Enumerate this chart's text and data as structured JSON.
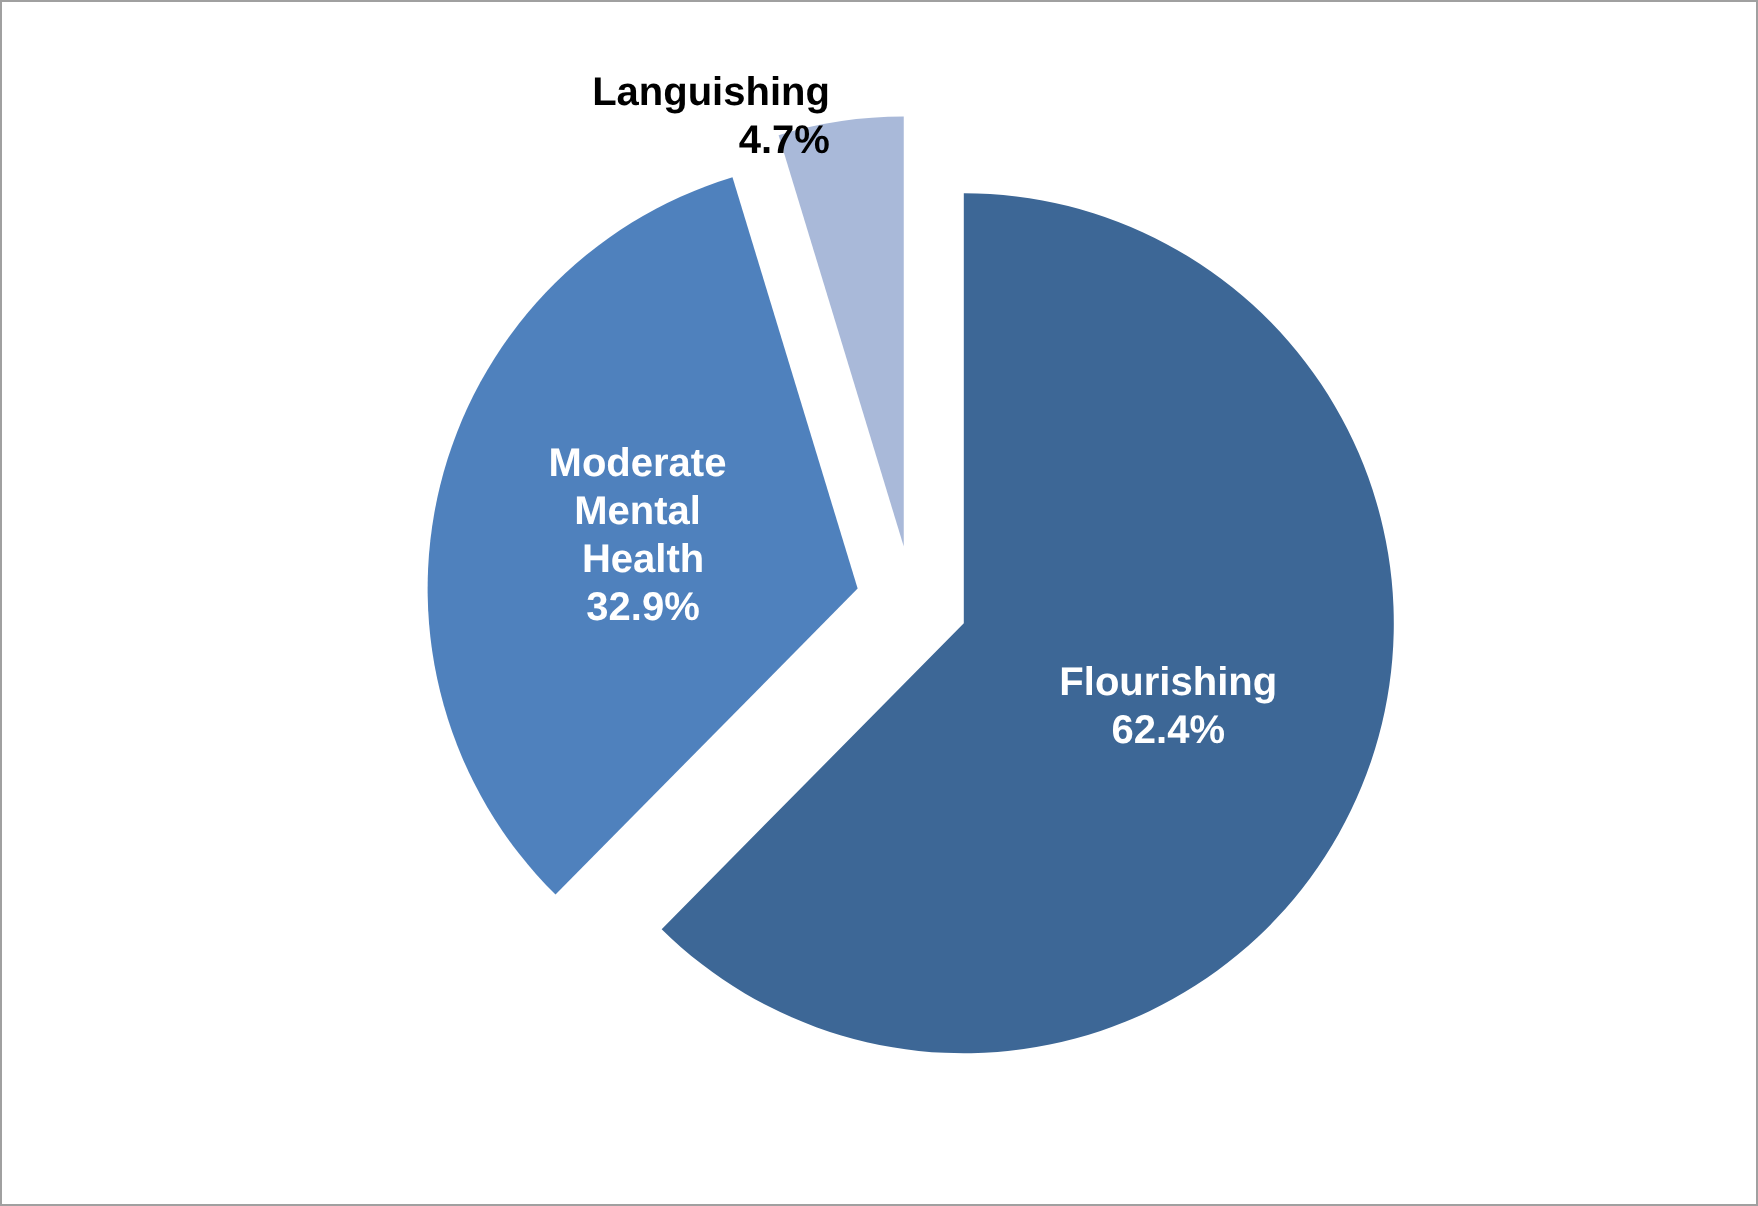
{
  "chart_data": {
    "type": "pie",
    "categories": [
      "Flourishing",
      "Moderate Mental Health",
      "Languishing"
    ],
    "values": [
      62.4,
      32.9,
      4.7
    ],
    "colors": [
      "#3d6796",
      "#4f81bd",
      "#a9b9d9"
    ],
    "value_labels": [
      "62.4%",
      "32.9%",
      "4.7%"
    ]
  }
}
